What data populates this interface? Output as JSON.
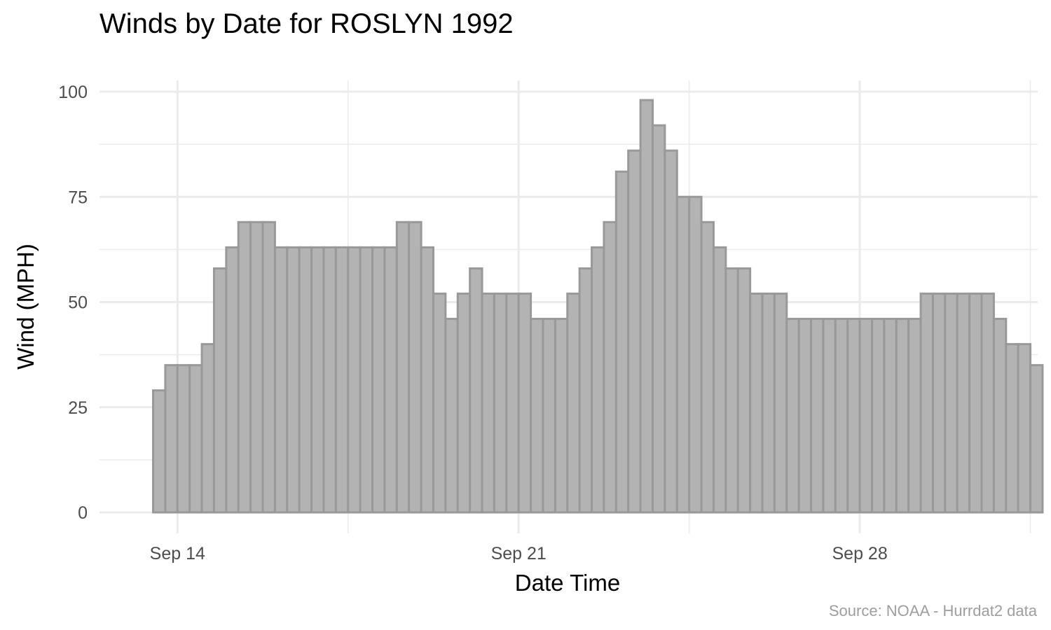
{
  "chart_data": {
    "type": "bar",
    "title": "Winds by Date for ROSLYN 1992",
    "xlabel": "Date Time",
    "ylabel": "Wind (MPH)",
    "caption": "Source: NOAA - Hurrdat2 data",
    "ylim": [
      0,
      100
    ],
    "y_ticks": [
      0,
      25,
      50,
      75,
      100
    ],
    "x_ticks": [
      {
        "label": "Sep 14",
        "day": 14
      },
      {
        "label": "Sep 21",
        "day": 21
      },
      {
        "label": "Sep 28",
        "day": 28
      }
    ],
    "x_minor_ticks": [
      17.5,
      24.5,
      31.5
    ],
    "xlim_days": [
      12.4,
      31.65
    ],
    "series_start": "Sep 13 12:00",
    "interval_hours": 6,
    "values": [
      29,
      35,
      35,
      35,
      40,
      58,
      63,
      69,
      69,
      69,
      63,
      63,
      63,
      63,
      63,
      63,
      63,
      63,
      63,
      63,
      69,
      69,
      63,
      52,
      46,
      52,
      58,
      52,
      52,
      52,
      52,
      46,
      46,
      46,
      52,
      58,
      63,
      69,
      81,
      86,
      98,
      92,
      86,
      75,
      75,
      69,
      63,
      58,
      58,
      52,
      52,
      52,
      46,
      46,
      46,
      46,
      46,
      46,
      46,
      46,
      46,
      46,
      46,
      52,
      52,
      52,
      52,
      52,
      52,
      46,
      40,
      40,
      35
    ],
    "bar_color": "#b3b3b3",
    "bar_outline": "#999999",
    "grid": true
  }
}
